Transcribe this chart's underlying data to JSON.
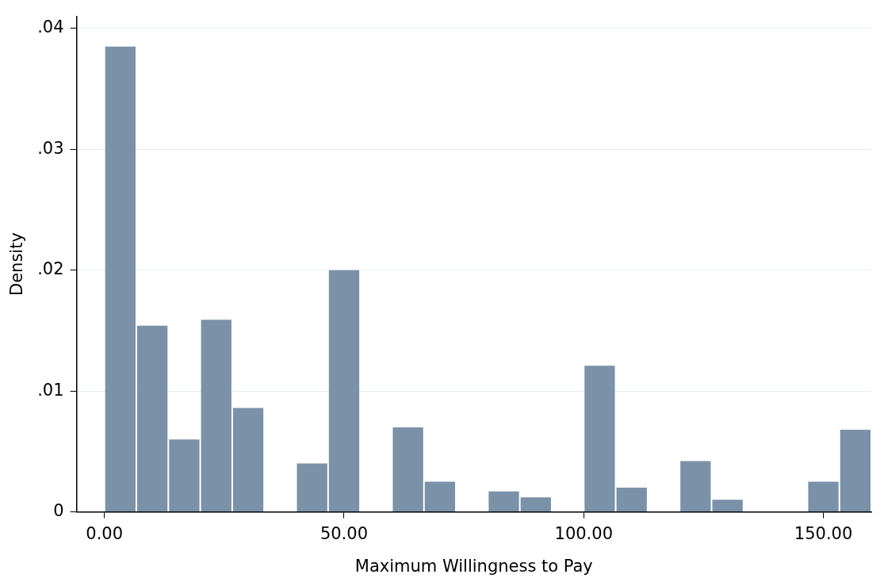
{
  "chart_data": {
    "type": "histogram",
    "xlabel": "Maximum Willingness to Pay",
    "ylabel": "Density",
    "color": "#7b91a8",
    "bins": [
      0,
      6.667,
      13.333,
      20,
      26.667,
      33.333,
      40,
      46.667,
      53.333,
      60,
      66.667,
      73.333,
      80,
      86.667,
      93.333,
      100,
      106.667,
      113.333,
      120,
      126.667,
      133.333,
      140,
      146.667,
      153.333,
      160
    ],
    "values": [
      0.0385,
      0.0154,
      0.006,
      0.0159,
      0.0086,
      0,
      0.004,
      0.02,
      0,
      0.007,
      0.0025,
      0,
      0.0017,
      0.0012,
      0,
      0.0121,
      0.002,
      0,
      0.0042,
      0.001,
      0,
      0,
      0.0025,
      0.0068
    ],
    "xlim": [
      -5.8,
      160
    ],
    "ylim": [
      0,
      0.041
    ],
    "xticks": [
      {
        "value": 0,
        "label": "0.00"
      },
      {
        "value": 50,
        "label": "50.00"
      },
      {
        "value": 100,
        "label": "100.00"
      },
      {
        "value": 150,
        "label": "150.00"
      }
    ],
    "yticks": [
      0,
      {
        "value": 0.01,
        "label": ".01"
      },
      {
        "value": 0.02,
        "label": ".02"
      },
      {
        "value": 0.03,
        "label": ".03"
      },
      {
        "value": 0.04,
        "label": ".04"
      }
    ],
    "grid": "y",
    "legend": false
  }
}
